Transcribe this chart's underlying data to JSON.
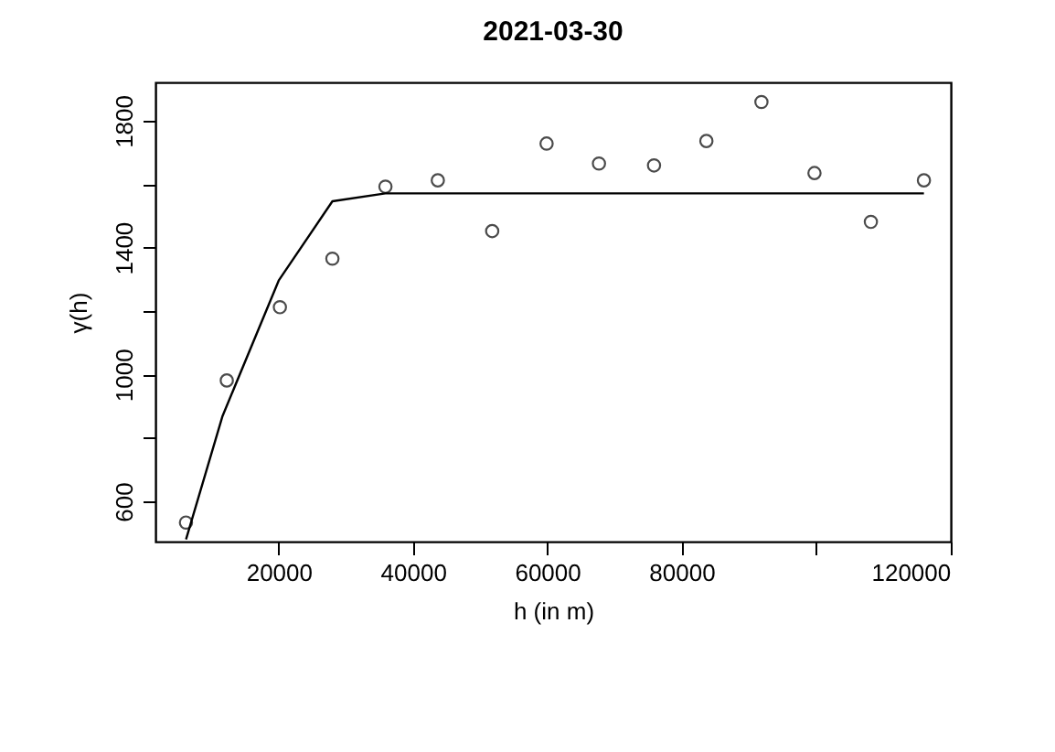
{
  "chart_data": {
    "type": "scatter",
    "title": "2021-03-30",
    "xlabel": "h (in m)",
    "ylabel": "γ(h)",
    "xlim": [
      1640,
      120100
    ],
    "ylim": [
      473,
      1921
    ],
    "xticks": [
      20000,
      40000,
      60000,
      80000,
      {
        "value": 100000,
        "label": null
      },
      120000
    ],
    "yticks": [
      600,
      {
        "value": 800,
        "label": null
      },
      1000,
      {
        "value": 1200,
        "label": null
      },
      1400,
      {
        "value": 1600,
        "label": null
      },
      1800
    ],
    "grid": false,
    "series": [
      {
        "marker": "circle",
        "color": "#000000",
        "x": [
          6190,
          12270,
          20180,
          28000,
          35900,
          43700,
          51800,
          59900,
          67700,
          75900,
          83700,
          91900,
          99800,
          108200,
          116100
        ],
        "values": [
          533,
          981,
          1212,
          1365,
          1592,
          1612,
          1452,
          1728,
          1665,
          1659,
          1736,
          1859,
          1635,
          1481,
          1612
        ]
      },
      {
        "type": "line",
        "marker": "none",
        "line_style": "solid",
        "color": "#000000",
        "x": [
          6200,
          11640,
          20000,
          28000,
          35900,
          116100
        ],
        "values": [
          480,
          869,
          1296,
          1546,
          1571,
          1571
        ]
      }
    ]
  }
}
